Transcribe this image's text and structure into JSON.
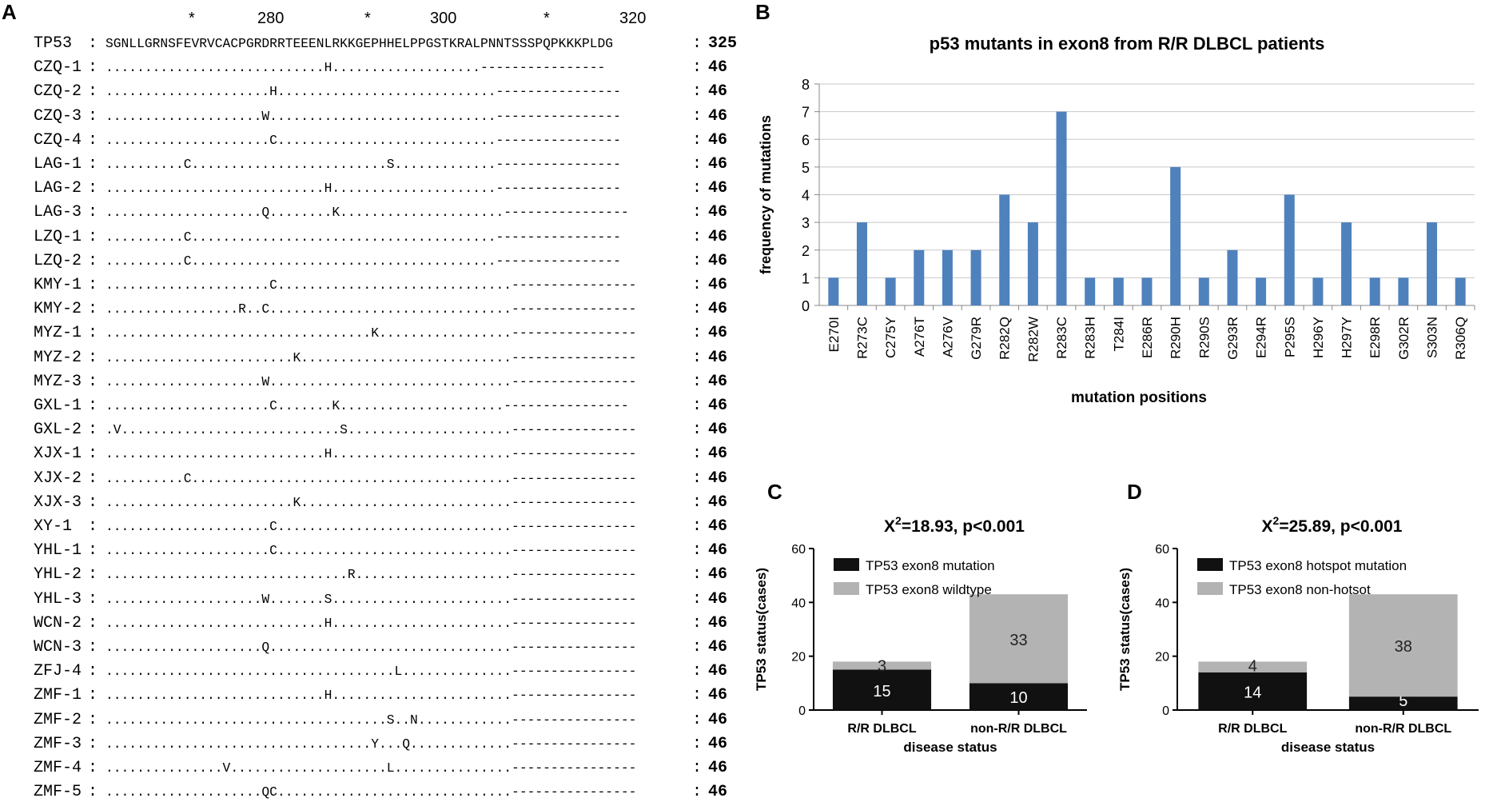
{
  "panel_labels": {
    "a": "A",
    "b": "B",
    "c": "C",
    "d": "D"
  },
  "alignment": {
    "ruler": [
      {
        "label": "*"
      },
      {
        "label": "280"
      },
      {
        "label": "*"
      },
      {
        "label": "300"
      },
      {
        "label": "*"
      },
      {
        "label": "320"
      }
    ],
    "rows": [
      {
        "name": "TP53",
        "seq": "SGNLLGRNSFEVRVCACPGRDRRTEEENLRKKGEPHHELPPGSTKRALPNNTSSSPQPKKKPLDG",
        "count": "325"
      },
      {
        "name": "CZQ-1",
        "seq": "............................H...................----------------",
        "count": "46"
      },
      {
        "name": "CZQ-2",
        "seq": ".....................H............................----------------",
        "count": "46"
      },
      {
        "name": "CZQ-3",
        "seq": "....................W.............................----------------",
        "count": "46"
      },
      {
        "name": "CZQ-4",
        "seq": ".....................C............................----------------",
        "count": "46"
      },
      {
        "name": "LAG-1",
        "seq": "..........C.........................S.............----------------",
        "count": "46"
      },
      {
        "name": "LAG-2",
        "seq": "............................H.....................----------------",
        "count": "46"
      },
      {
        "name": "LAG-3",
        "seq": "....................Q........K.....................----------------",
        "count": "46"
      },
      {
        "name": "LZQ-1",
        "seq": "..........C.......................................----------------",
        "count": "46"
      },
      {
        "name": "LZQ-2",
        "seq": "..........C.......................................----------------",
        "count": "46"
      },
      {
        "name": "KMY-1",
        "seq": ".....................C..............................----------------",
        "count": "46"
      },
      {
        "name": "KMY-2",
        "seq": ".................R..C...............................----------------",
        "count": "46"
      },
      {
        "name": "MYZ-1",
        "seq": "..................................K.................----------------",
        "count": "46"
      },
      {
        "name": "MYZ-2",
        "seq": "........................K...........................----------------",
        "count": "46"
      },
      {
        "name": "MYZ-3",
        "seq": "....................W...............................----------------",
        "count": "46"
      },
      {
        "name": "GXL-1",
        "seq": ".....................C.......K.....................----------------",
        "count": "46"
      },
      {
        "name": "GXL-2",
        "seq": ".V............................S.....................----------------",
        "count": "46"
      },
      {
        "name": "XJX-1",
        "seq": "............................H.......................----------------",
        "count": "46"
      },
      {
        "name": "XJX-2",
        "seq": "..........C.........................................----------------",
        "count": "46"
      },
      {
        "name": "XJX-3",
        "seq": "........................K...........................----------------",
        "count": "46"
      },
      {
        "name": "XY-1",
        "seq": ".....................C..............................----------------",
        "count": "46"
      },
      {
        "name": "YHL-1",
        "seq": ".....................C..............................----------------",
        "count": "46"
      },
      {
        "name": "YHL-2",
        "seq": "...............................R....................----------------",
        "count": "46"
      },
      {
        "name": "YHL-3",
        "seq": "....................W.......S.......................----------------",
        "count": "46"
      },
      {
        "name": "WCN-2",
        "seq": "............................H.......................----------------",
        "count": "46"
      },
      {
        "name": "WCN-3",
        "seq": "....................Q...............................----------------",
        "count": "46"
      },
      {
        "name": "ZFJ-4",
        "seq": ".....................................L..............----------------",
        "count": "46"
      },
      {
        "name": "ZMF-1",
        "seq": "............................H.......................----------------",
        "count": "46"
      },
      {
        "name": "ZMF-2",
        "seq": "....................................S..N............----------------",
        "count": "46"
      },
      {
        "name": "ZMF-3",
        "seq": "..................................Y...Q.............----------------",
        "count": "46"
      },
      {
        "name": "ZMF-4",
        "seq": "...............V....................L...............----------------",
        "count": "46"
      },
      {
        "name": "ZMF-5",
        "seq": "....................QC..............................----------------",
        "count": "46"
      }
    ]
  },
  "chart_data": [
    {
      "panel": "B",
      "type": "bar",
      "title": "p53 mutants in exon8 from R/R DLBCL patients",
      "xlabel": "mutation positions",
      "ylabel": "frequency of mutations",
      "ylim": [
        0,
        8
      ],
      "yticks": [
        "0",
        "1",
        "2",
        "3",
        "4",
        "5",
        "6",
        "7",
        "8"
      ],
      "categories": [
        "E270I",
        "R273C",
        "C275Y",
        "A276T",
        "A276V",
        "G279R",
        "R282Q",
        "R282W",
        "R283C",
        "R283H",
        "T284I",
        "E286R",
        "R290H",
        "R290S",
        "G293R",
        "E294R",
        "P295S",
        "H296Y",
        "H297Y",
        "E298R",
        "G302R",
        "S303N",
        "R306Q"
      ],
      "values": [
        1,
        3,
        1,
        2,
        2,
        2,
        4,
        3,
        7,
        1,
        1,
        1,
        5,
        1,
        2,
        1,
        4,
        1,
        3,
        1,
        1,
        3,
        1
      ],
      "color": "#4f81bd",
      "grid": true
    },
    {
      "panel": "C",
      "type": "bar",
      "stacked": true,
      "title_prefix": "X",
      "title_sup": "2",
      "title_rest": "=18.93, p<0.001",
      "xlabel": "disease status",
      "ylabel": "TP53 status(cases)",
      "ylim": [
        0,
        60
      ],
      "yticks": [
        "0",
        "20",
        "40",
        "60"
      ],
      "categories": [
        "R/R DLBCL",
        "non-R/R DLBCL"
      ],
      "series": [
        {
          "name": "TP53 exon8 mutation",
          "values": [
            15,
            10
          ],
          "labels": [
            "15",
            "10"
          ],
          "color": "#111111"
        },
        {
          "name": "TP53 exon8 wildtype",
          "values": [
            3,
            33
          ],
          "labels": [
            "3",
            "33"
          ],
          "color": "#b3b3b3"
        }
      ],
      "legend": "top-left"
    },
    {
      "panel": "D",
      "type": "bar",
      "stacked": true,
      "title_prefix": "X",
      "title_sup": "2",
      "title_rest": "=25.89, p<0.001",
      "xlabel": "disease status",
      "ylabel": "TP53 status(cases)",
      "ylim": [
        0,
        60
      ],
      "yticks": [
        "0",
        "20",
        "40",
        "60"
      ],
      "categories": [
        "R/R DLBCL",
        "non-R/R DLBCL"
      ],
      "series": [
        {
          "name": "TP53 exon8 hotspot mutation",
          "values": [
            14,
            5
          ],
          "labels": [
            "14",
            "5"
          ],
          "color": "#111111"
        },
        {
          "name": "TP53 exon8 non-hotsot",
          "values": [
            4,
            38
          ],
          "labels": [
            "4",
            "38"
          ],
          "color": "#b3b3b3"
        }
      ],
      "legend": "top-left"
    }
  ]
}
